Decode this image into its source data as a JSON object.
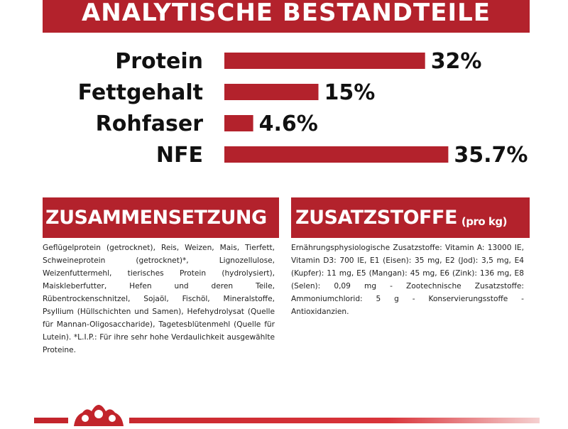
{
  "banner": {
    "title": "ANALYTISCHE BESTANDTEILE"
  },
  "chart_data": {
    "type": "bar",
    "orientation": "horizontal",
    "title": "ANALYTISCHE BESTANDTEILE",
    "categories": [
      "Protein",
      "Fettgehalt",
      "Rohfaser",
      "NFE"
    ],
    "values": [
      32,
      15,
      4.6,
      35.7
    ],
    "value_labels": [
      "32%",
      "15%",
      "4.6%",
      "35.7%"
    ],
    "unit": "%",
    "xlim": [
      0,
      36
    ],
    "grid": false,
    "legend": "none",
    "bar_color": "#b3222c"
  },
  "composition": {
    "title": "ZUSAMMENSETZUNG",
    "text": "Geflügelprotein (getrocknet), Reis, Weizen, Mais, Tierfett, Schweineprotein (getrocknet)*, Lignozellulose, Weizenfuttermehl, tierisches Protein (hydrolysiert), Maiskleberfutter, Hefen und deren Teile, Rübentrockenschnitzel, Sojaöl, Fischöl, Mineralstoffe, Psyllium (Hüllschichten und Samen), Hefehydrolysat (Quelle für Mannan-Oligosaccharide), Tagetesblütenmehl (Quelle für Lutein). *L.I.P.: Für ihre sehr hohe Verdaulichkeit ausgewählte Proteine."
  },
  "additives": {
    "title": "ZUSATZSTOFFE",
    "subtitle": "(pro kg)",
    "text": "Ernährungsphysiologische Zusatzstoffe: Vitamin A: 13000 IE, Vitamin D3: 700 IE, E1 (Eisen): 35 mg, E2 (Jod): 3,5 mg, E4 (Kupfer): 11 mg, E5 (Mangan): 45 mg, E6 (Zink): 136 mg, E8 (Selen): 0,09 mg - Zootechnische Zusatzstoffe: Ammoniumchlorid: 5 g - Konservierungsstoffe - Antioxidanzien."
  },
  "colors": {
    "brand_red": "#b3222c",
    "text": "#111111"
  },
  "footer": {
    "logo": "crown-logo-icon"
  }
}
